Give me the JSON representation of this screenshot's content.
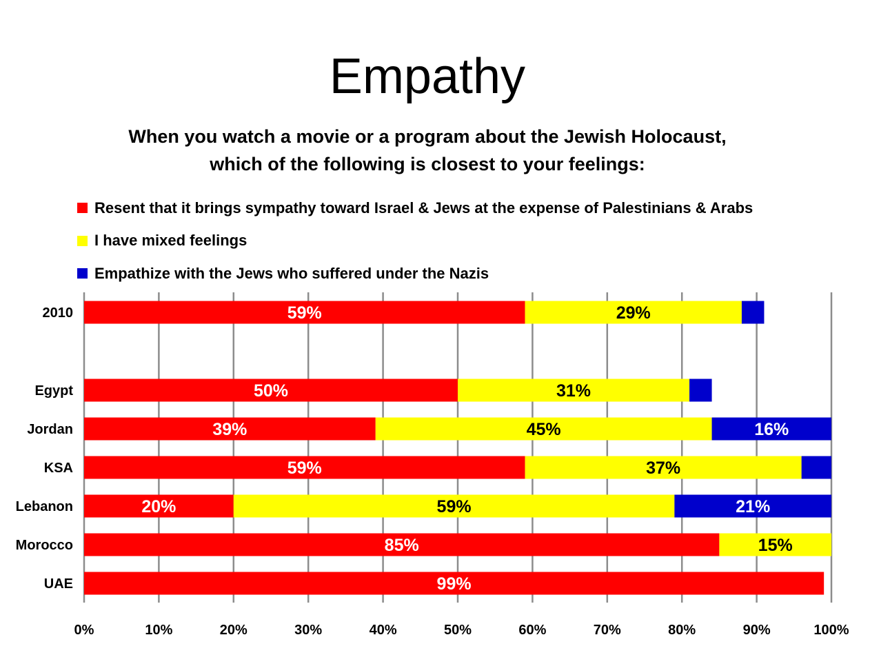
{
  "header": {
    "title": "Empathy",
    "question_line1": "When you watch a movie or a program about the Jewish Holocaust,",
    "question_line2": "which of the following is closest to your feelings:"
  },
  "chart_data": {
    "type": "bar",
    "orientation": "horizontal",
    "stacked": true,
    "categories": [
      "2010",
      "Egypt",
      "Jordan",
      "KSA",
      "Lebanon",
      "Morocco",
      "UAE"
    ],
    "series": [
      {
        "name": "Resent that it brings sympathy toward Israel & Jews at the expense of Palestinians & Arabs",
        "color": "#ff0000",
        "values": [
          59,
          50,
          39,
          59,
          20,
          85,
          99
        ]
      },
      {
        "name": "I have mixed feelings",
        "color": "#ffff00",
        "values": [
          29,
          31,
          45,
          37,
          59,
          15,
          0
        ]
      },
      {
        "name": "Empathize with the Jews who suffered under the Nazis",
        "color": "#0000cc",
        "values": [
          3,
          3,
          16,
          4,
          21,
          0,
          0
        ]
      }
    ],
    "data_labels": [
      [
        "59%",
        "50%",
        "39%",
        "59%",
        "20%",
        "85%",
        "99%"
      ],
      [
        "29%",
        "31%",
        "45%",
        "37%",
        "59%",
        "15%",
        ""
      ],
      [
        "",
        "",
        "16%",
        "",
        "21%",
        "",
        ""
      ]
    ],
    "data_label_colors": [
      "#ffffff",
      "#000000",
      "#ffffff"
    ],
    "xlim": [
      0,
      100
    ],
    "x_ticks": [
      "0%",
      "10%",
      "20%",
      "30%",
      "40%",
      "50%",
      "60%",
      "70%",
      "80%",
      "90%",
      "100%"
    ],
    "grid": true,
    "legend_position": "top-left"
  }
}
